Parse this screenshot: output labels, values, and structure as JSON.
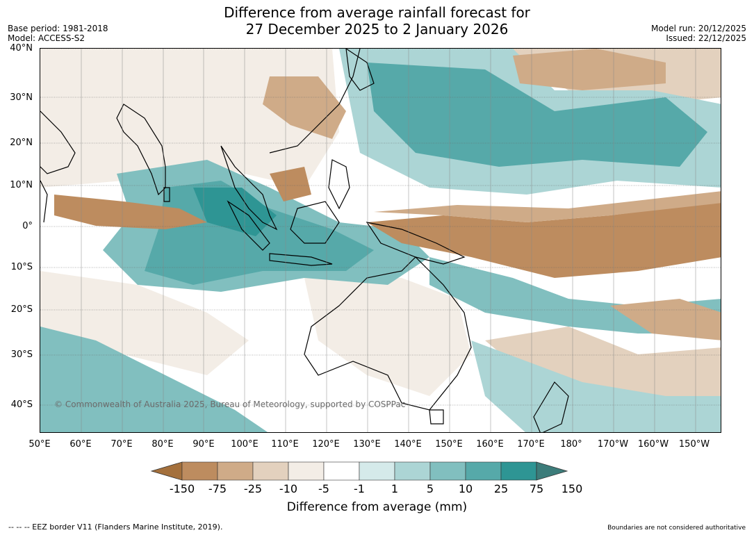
{
  "title": {
    "line1": "Difference from average rainfall forecast for",
    "line2": "27 December 2025 to 2 January 2026"
  },
  "meta": {
    "base_period": "Base period: 1981-2018",
    "model": "Model: ACCESS-S2",
    "model_run": "Model run: 20/12/2025",
    "issued": "Issued: 22/12/2025"
  },
  "map": {
    "lat_labels": [
      "40°N",
      "30°N",
      "20°N",
      "10°N",
      "0°",
      "10°S",
      "20°S",
      "30°S",
      "40°S"
    ],
    "lon_labels": [
      "50°E",
      "60°E",
      "70°E",
      "80°E",
      "90°E",
      "100°E",
      "110°E",
      "120°E",
      "130°E",
      "140°E",
      "150°E",
      "160°E",
      "170°E",
      "180°",
      "170°W",
      "160°W",
      "150°W"
    ],
    "copyright": "© Commonwealth of Australia 2025, Bureau of Meteorology, supported by COSPPac"
  },
  "colorbar": {
    "tick_labels": [
      "-150",
      "-75",
      "-25",
      "-10",
      "-5",
      "-1",
      "1",
      "5",
      "10",
      "25",
      "75",
      "150"
    ],
    "colors": [
      "#a4703c",
      "#bd8c5f",
      "#cfab88",
      "#e3d1be",
      "#f3ede6",
      "#ffffff",
      "#d5eaea",
      "#acd5d5",
      "#81bfbf",
      "#56a9a9",
      "#2e9594",
      "#3c7c7a"
    ],
    "title": "Difference from average (mm)"
  },
  "footer": {
    "eez": "--  --  -- EEZ border V11 (Flanders Marine Institute, 2019).",
    "disclaimer": "Boundaries are not considered authoritative"
  }
}
